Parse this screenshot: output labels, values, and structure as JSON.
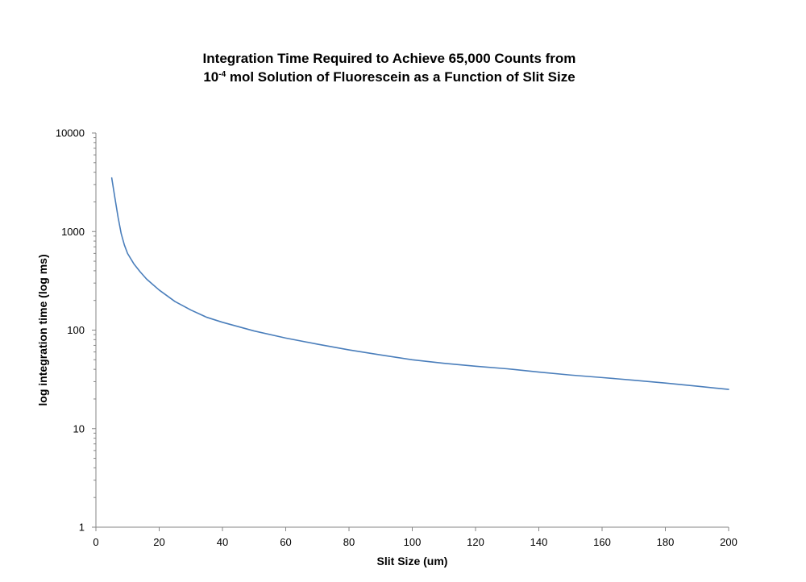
{
  "chart_data": {
    "type": "line",
    "title_line1": "Integration Time Required to Achieve 65,000 Counts from",
    "title_line2_prefix": "10",
    "title_line2_superscript": "-4",
    "title_line2_suffix": " mol Solution of Fluorescein as a Function of Slit Size",
    "xlabel": "Slit Size (um)",
    "ylabel": "log integration time (log ms)",
    "xlim": [
      0,
      200
    ],
    "ylim": [
      1,
      10000
    ],
    "yscale": "log",
    "x_ticks": [
      "0",
      "20",
      "40",
      "60",
      "80",
      "100",
      "120",
      "140",
      "160",
      "180",
      "200"
    ],
    "y_ticks": [
      "1",
      "10",
      "100",
      "1000",
      "10000"
    ],
    "grid": false,
    "legend": "none",
    "line_color": "#4a7ebb",
    "series": [
      {
        "x": [
          5,
          6,
          7,
          8,
          9,
          10,
          12,
          14,
          16,
          18,
          20,
          25,
          30,
          35,
          40,
          50,
          60,
          70,
          80,
          90,
          100,
          110,
          120,
          130,
          140,
          150,
          160,
          170,
          180,
          190,
          200
        ],
        "values": [
          3500,
          2200,
          1400,
          950,
          730,
          600,
          470,
          390,
          330,
          290,
          255,
          195,
          160,
          135,
          120,
          98,
          83,
          72,
          63,
          56,
          50,
          46,
          43,
          40.5,
          37.5,
          35,
          33,
          31,
          29,
          27,
          25
        ]
      }
    ]
  }
}
